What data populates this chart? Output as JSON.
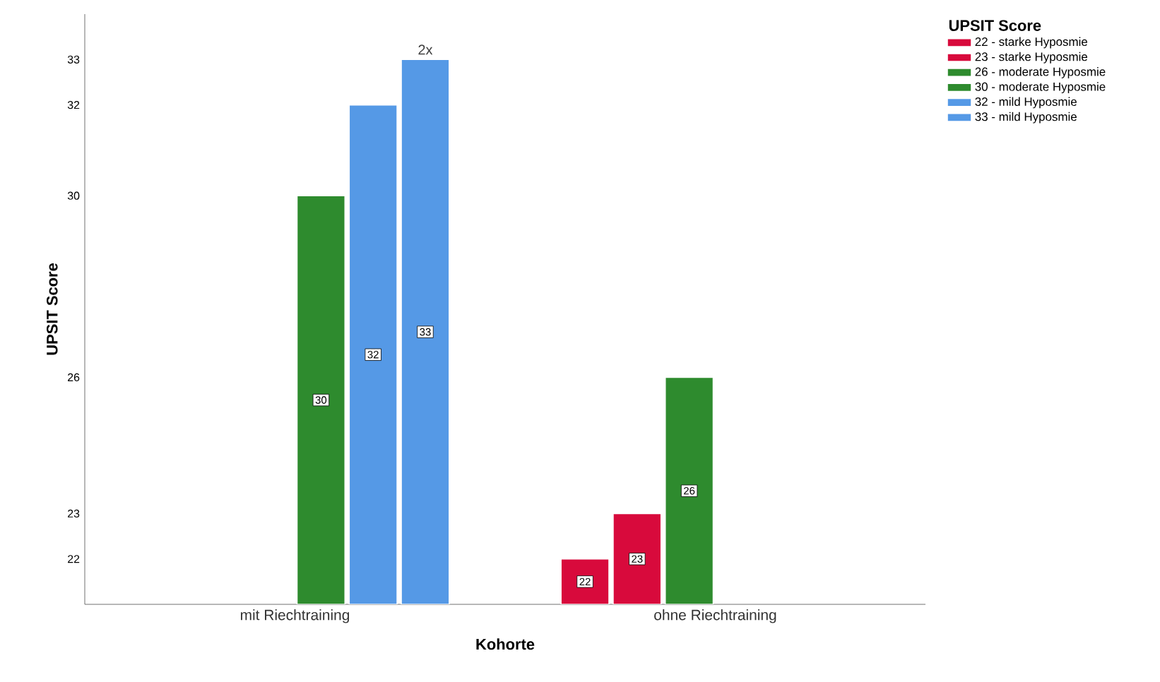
{
  "chart_data": {
    "type": "bar",
    "xlabel": "Kohorte",
    "ylabel": "UPSIT Score",
    "legend_title": "UPSIT Score",
    "categories": [
      "mit Riechtraining",
      "ohne Riechtraining"
    ],
    "series": [
      {
        "name": "22 - starke Hyposmie",
        "color": "#d80a3c",
        "values": [
          null,
          22
        ]
      },
      {
        "name": "23 - starke Hyposmie",
        "color": "#d80a3c",
        "values": [
          null,
          23
        ]
      },
      {
        "name": "26 - moderate Hyposmie",
        "color": "#2e8b2e",
        "values": [
          null,
          26
        ]
      },
      {
        "name": "30 - moderate Hyposmie",
        "color": "#2e8b2e",
        "values": [
          30,
          null
        ]
      },
      {
        "name": "32 - mild Hyposmie",
        "color": "#5599e6",
        "values": [
          32,
          null
        ]
      },
      {
        "name": "33 - mild Hyposmie",
        "color": "#5599e6",
        "values": [
          33,
          null
        ]
      }
    ],
    "ylim": [
      21,
      34
    ],
    "yticks": [
      22,
      23,
      26,
      30,
      32,
      33
    ],
    "data_labels": true,
    "legend": "top right",
    "grid": false,
    "annotations": [
      "2x"
    ]
  }
}
